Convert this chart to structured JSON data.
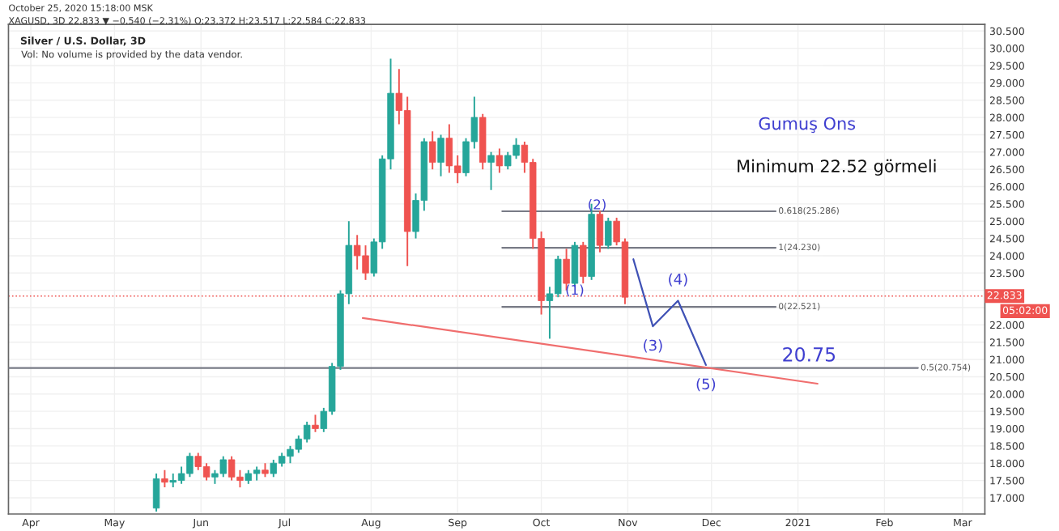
{
  "chart_data": {
    "type": "candlestick",
    "title": "Silver / U.S. Dollar, 3D",
    "annotations": [
      "October 25, 2020 15:18:00 MSK",
      "XAGUSD, 3D 22.833 ▼ −0.540 (−2.31%) O:23.372 H:23.517 L:22.584 C:22.833",
      "Vol: No volume is provided by the data vendor.",
      "Gumuş Ons",
      "Minimum 22.52 görmeli",
      "05:02:00",
      {
        "text": "(1)",
        "x": "2020-10-13",
        "y": 22.98
      },
      {
        "text": "(2)",
        "x": "2020-10-21",
        "y": 25.45
      },
      {
        "text": "(3)",
        "x": "2020-11-10",
        "y": 21.96
      },
      {
        "text": "(4)",
        "x": "2020-11-19",
        "y": 22.7
      },
      {
        "text": "(5)",
        "x": "2020-11-29",
        "y": 20.84
      },
      {
        "text": "20.75",
        "x": "2021-01-05",
        "y": 20.83
      },
      {
        "text": "0.618(25.286)",
        "x": "2020-12-24",
        "y": 25.286
      },
      {
        "text": "1(24.230)",
        "x": "2020-12-24",
        "y": 24.23
      },
      {
        "text": "0(22.521)",
        "x": "2020-12-24",
        "y": 22.521
      },
      {
        "text": "0.5(20.754)",
        "x": "2021-02-13",
        "y": 20.754
      }
    ],
    "x": [
      "2020-05-16",
      "2020-05-19",
      "2020-05-22",
      "2020-05-25",
      "2020-05-28",
      "2020-05-31",
      "2020-06-03",
      "2020-06-06",
      "2020-06-09",
      "2020-06-12",
      "2020-06-15",
      "2020-06-18",
      "2020-06-21",
      "2020-06-24",
      "2020-06-27",
      "2020-06-30",
      "2020-07-03",
      "2020-07-06",
      "2020-07-09",
      "2020-07-12",
      "2020-07-15",
      "2020-07-18",
      "2020-07-21",
      "2020-07-24",
      "2020-07-27",
      "2020-07-30",
      "2020-08-02",
      "2020-08-05",
      "2020-08-08",
      "2020-08-11",
      "2020-08-14",
      "2020-08-17",
      "2020-08-20",
      "2020-08-23",
      "2020-08-26",
      "2020-08-29",
      "2020-09-01",
      "2020-09-04",
      "2020-09-07",
      "2020-09-10",
      "2020-09-13",
      "2020-09-16",
      "2020-09-19",
      "2020-09-22",
      "2020-09-25",
      "2020-09-28",
      "2020-10-01",
      "2020-10-04",
      "2020-10-07",
      "2020-10-10",
      "2020-10-13",
      "2020-10-16",
      "2020-10-19",
      "2020-10-22",
      "2020-10-25",
      "2020-10-28",
      "2020-10-31"
    ],
    "ohlc": [
      [
        16.7,
        17.7,
        16.6,
        17.55
      ],
      [
        17.55,
        17.8,
        17.3,
        17.45
      ],
      [
        17.45,
        17.7,
        17.3,
        17.5
      ],
      [
        17.5,
        17.9,
        17.4,
        17.7
      ],
      [
        17.7,
        18.3,
        17.6,
        18.2
      ],
      [
        18.2,
        18.3,
        17.8,
        17.9
      ],
      [
        17.9,
        18.0,
        17.5,
        17.6
      ],
      [
        17.6,
        17.8,
        17.4,
        17.7
      ],
      [
        17.7,
        18.2,
        17.6,
        18.1
      ],
      [
        18.1,
        18.2,
        17.5,
        17.6
      ],
      [
        17.6,
        17.8,
        17.3,
        17.5
      ],
      [
        17.5,
        17.8,
        17.4,
        17.7
      ],
      [
        17.7,
        17.9,
        17.5,
        17.8
      ],
      [
        17.8,
        18.0,
        17.6,
        17.7
      ],
      [
        17.7,
        18.1,
        17.6,
        18.0
      ],
      [
        18.0,
        18.3,
        17.9,
        18.2
      ],
      [
        18.2,
        18.5,
        18.0,
        18.4
      ],
      [
        18.4,
        18.8,
        18.3,
        18.7
      ],
      [
        18.7,
        19.2,
        18.6,
        19.1
      ],
      [
        19.1,
        19.4,
        18.9,
        19.0
      ],
      [
        19.0,
        19.6,
        18.9,
        19.5
      ],
      [
        19.5,
        20.9,
        19.4,
        20.8
      ],
      [
        20.8,
        23.0,
        20.7,
        22.9
      ],
      [
        22.9,
        25.0,
        22.6,
        24.3
      ],
      [
        24.3,
        24.6,
        23.6,
        24.0
      ],
      [
        24.0,
        24.3,
        23.3,
        23.5
      ],
      [
        23.5,
        24.5,
        23.4,
        24.4
      ],
      [
        24.4,
        26.9,
        24.2,
        26.8
      ],
      [
        26.8,
        29.7,
        26.5,
        28.7
      ],
      [
        28.7,
        29.4,
        27.8,
        28.2
      ],
      [
        28.2,
        28.6,
        23.7,
        24.7
      ],
      [
        24.7,
        25.8,
        24.5,
        25.6
      ],
      [
        25.6,
        27.4,
        25.3,
        27.3
      ],
      [
        27.3,
        27.6,
        26.5,
        26.7
      ],
      [
        26.7,
        27.5,
        26.3,
        27.4
      ],
      [
        27.4,
        27.8,
        26.4,
        26.6
      ],
      [
        26.6,
        26.9,
        26.1,
        26.4
      ],
      [
        26.4,
        27.4,
        26.3,
        27.3
      ],
      [
        27.3,
        28.6,
        27.1,
        28.0
      ],
      [
        28.0,
        28.1,
        26.5,
        26.7
      ],
      [
        26.7,
        27.0,
        25.9,
        26.9
      ],
      [
        26.9,
        27.1,
        26.4,
        26.6
      ],
      [
        26.6,
        27.0,
        26.5,
        26.9
      ],
      [
        26.9,
        27.4,
        26.8,
        27.2
      ],
      [
        27.2,
        27.3,
        26.4,
        26.7
      ],
      [
        26.7,
        26.8,
        24.2,
        24.5
      ],
      [
        24.5,
        24.7,
        22.3,
        22.7
      ],
      [
        22.7,
        23.1,
        21.6,
        22.9
      ],
      [
        22.9,
        24.0,
        22.8,
        23.9
      ],
      [
        23.9,
        24.2,
        23.0,
        23.2
      ],
      [
        23.2,
        24.4,
        23.1,
        24.3
      ],
      [
        24.3,
        24.4,
        23.2,
        23.4
      ],
      [
        23.4,
        25.5,
        23.3,
        25.2
      ],
      [
        25.2,
        25.3,
        24.1,
        24.3
      ],
      [
        24.3,
        25.1,
        24.2,
        25.0
      ],
      [
        25.0,
        25.1,
        24.3,
        24.4
      ],
      [
        24.4,
        24.5,
        22.6,
        22.8
      ]
    ],
    "colors": [
      "#26a69a",
      "#ef5350",
      "#26a69a",
      "#26a69a",
      "#26a69a",
      "#ef5350",
      "#ef5350",
      "#26a69a",
      "#26a69a",
      "#ef5350",
      "#ef5350",
      "#26a69a",
      "#26a69a",
      "#ef5350",
      "#26a69a",
      "#26a69a",
      "#26a69a",
      "#26a69a",
      "#26a69a",
      "#ef5350",
      "#26a69a",
      "#26a69a",
      "#26a69a",
      "#26a69a",
      "#ef5350",
      "#ef5350",
      "#26a69a",
      "#26a69a",
      "#26a69a",
      "#ef5350",
      "#ef5350",
      "#26a69a",
      "#26a69a",
      "#ef5350",
      "#26a69a",
      "#ef5350",
      "#ef5350",
      "#26a69a",
      "#26a69a",
      "#ef5350",
      "#26a69a",
      "#ef5350",
      "#26a69a",
      "#26a69a",
      "#ef5350",
      "#ef5350",
      "#ef5350",
      "#26a69a",
      "#26a69a",
      "#ef5350",
      "#26a69a",
      "#ef5350",
      "#26a69a",
      "#ef5350",
      "#26a69a",
      "#ef5350",
      "#ef5350"
    ],
    "series": [
      {
        "type": "line",
        "color": "#787b86",
        "x": [
          "2020-09-17",
          "2020-12-24"
        ],
        "values": [
          25.286,
          25.286
        ]
      },
      {
        "type": "line",
        "color": "#787b86",
        "x": [
          "2020-09-17",
          "2020-12-24"
        ],
        "values": [
          24.23,
          24.23
        ]
      },
      {
        "type": "line",
        "color": "#787b86",
        "x": [
          "2020-09-17",
          "2020-12-24"
        ],
        "values": [
          22.521,
          22.521
        ]
      },
      {
        "type": "line",
        "color": "#787b86",
        "x": [
          "2020-03-24",
          "2021-02-13"
        ],
        "values": [
          20.754,
          20.754
        ]
      },
      {
        "type": "line",
        "color": "#f06e6e",
        "x": [
          "2020-07-29",
          "2021-01-08"
        ],
        "values": [
          22.2,
          20.3
        ]
      },
      {
        "type": "line",
        "color": "#3f51b5",
        "x": [
          "2020-11-03",
          "2020-11-10",
          "2020-11-19",
          "2020-11-29"
        ],
        "values": [
          23.9,
          21.96,
          22.7,
          20.84
        ]
      }
    ],
    "ref_lines": [
      {
        "axis": "y",
        "value": 22.833,
        "label": "22.833",
        "color": "#ef5350",
        "line_style": "dotted"
      }
    ],
    "xlim": [
      "2020-03-24",
      "2021-03-09"
    ],
    "xticks": [
      {
        "value": "2020-04-01",
        "label": "Apr"
      },
      {
        "value": "2020-05-01",
        "label": "May"
      },
      {
        "value": "2020-06-01",
        "label": "Jun"
      },
      {
        "value": "2020-07-01",
        "label": "Jul"
      },
      {
        "value": "2020-08-01",
        "label": "Aug"
      },
      {
        "value": "2020-09-01",
        "label": "Sep"
      },
      {
        "value": "2020-10-01",
        "label": "Oct"
      },
      {
        "value": "2020-11-01",
        "label": "Nov"
      },
      {
        "value": "2020-12-01",
        "label": "Dec"
      },
      {
        "value": "2021-01-01",
        "label": "2021"
      },
      {
        "value": "2021-02-01",
        "label": "Feb"
      },
      {
        "value": "2021-03-01",
        "label": "Mar"
      }
    ],
    "ylim": [
      16.53,
      30.69
    ],
    "yticks": [
      {
        "value": 17,
        "label": "17.000"
      },
      {
        "value": 17.5,
        "label": "17.500"
      },
      {
        "value": 18,
        "label": "18.000"
      },
      {
        "value": 18.5,
        "label": "18.500"
      },
      {
        "value": 19,
        "label": "19.000"
      },
      {
        "value": 19.5,
        "label": "19.500"
      },
      {
        "value": 20,
        "label": "20.000"
      },
      {
        "value": 20.5,
        "label": "20.500"
      },
      {
        "value": 21,
        "label": "21.000"
      },
      {
        "value": 21.5,
        "label": "21.500"
      },
      {
        "value": 22,
        "label": "22.000"
      },
      {
        "value": 22.5,
        "label": null
      },
      {
        "value": 23,
        "label": null
      },
      {
        "value": 23.5,
        "label": "23.500"
      },
      {
        "value": 24,
        "label": "24.000"
      },
      {
        "value": 24.5,
        "label": "24.500"
      },
      {
        "value": 25,
        "label": "25.000"
      },
      {
        "value": 25.5,
        "label": "25.500"
      },
      {
        "value": 26,
        "label": "26.000"
      },
      {
        "value": 26.5,
        "label": "26.500"
      },
      {
        "value": 27,
        "label": "27.000"
      },
      {
        "value": 27.5,
        "label": "27.500"
      },
      {
        "value": 28,
        "label": "28.000"
      },
      {
        "value": 28.5,
        "label": "28.500"
      },
      {
        "value": 29,
        "label": "29.000"
      },
      {
        "value": 29.5,
        "label": "29.500"
      },
      {
        "value": 30,
        "label": "30.000"
      },
      {
        "value": 30.5,
        "label": "30.500"
      }
    ],
    "grid": true
  }
}
